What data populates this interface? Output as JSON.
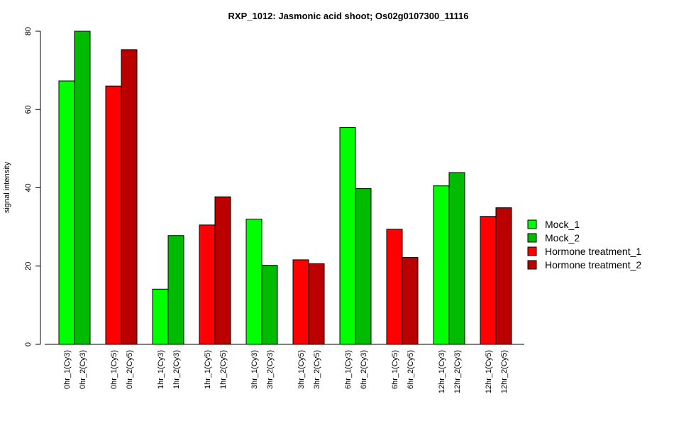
{
  "chart_data": {
    "type": "bar",
    "title": "RXP_1012: Jasmonic acid shoot; Os02g0107300_11116",
    "ylabel": "signal intensity",
    "xlabel": "",
    "ylim": [
      0,
      80
    ],
    "yticks": [
      0,
      20,
      40,
      60,
      80
    ],
    "legend_position": "right",
    "legend": [
      {
        "name": "Mock_1",
        "color": "#00ff00"
      },
      {
        "name": "Mock_2",
        "color": "#00bb00"
      },
      {
        "name": "Hormone treatment_1",
        "color": "#ff0000"
      },
      {
        "name": "Hormone treatment_2",
        "color": "#bb0000"
      }
    ],
    "groups": [
      {
        "bars": [
          {
            "label": "0hr_1(Cy3)",
            "value": 67.3,
            "color": "#00ff00"
          },
          {
            "label": "0hr_2(Cy3)",
            "value": 80.0,
            "color": "#00bb00"
          }
        ]
      },
      {
        "bars": [
          {
            "label": "0hr_1(Cy5)",
            "value": 66.0,
            "color": "#ff0000"
          },
          {
            "label": "0hr_2(Cy5)",
            "value": 75.3,
            "color": "#bb0000"
          }
        ]
      },
      {
        "bars": [
          {
            "label": "1hr_1(Cy3)",
            "value": 14.1,
            "color": "#00ff00"
          },
          {
            "label": "1hr_2(Cy3)",
            "value": 27.8,
            "color": "#00bb00"
          }
        ]
      },
      {
        "bars": [
          {
            "label": "1hr_1(Cy5)",
            "value": 30.5,
            "color": "#ff0000"
          },
          {
            "label": "1hr_2(Cy5)",
            "value": 37.7,
            "color": "#bb0000"
          }
        ]
      },
      {
        "bars": [
          {
            "label": "3hr_1(Cy3)",
            "value": 32.0,
            "color": "#00ff00"
          },
          {
            "label": "3hr_2(Cy3)",
            "value": 20.2,
            "color": "#00bb00"
          }
        ]
      },
      {
        "bars": [
          {
            "label": "3hr_1(Cy5)",
            "value": 21.6,
            "color": "#ff0000"
          },
          {
            "label": "3hr_2(Cy5)",
            "value": 20.6,
            "color": "#bb0000"
          }
        ]
      },
      {
        "bars": [
          {
            "label": "6hr_1(Cy3)",
            "value": 55.4,
            "color": "#00ff00"
          },
          {
            "label": "6hr_2(Cy3)",
            "value": 39.8,
            "color": "#00bb00"
          }
        ]
      },
      {
        "bars": [
          {
            "label": "6hr_1(Cy5)",
            "value": 29.4,
            "color": "#ff0000"
          },
          {
            "label": "6hr_2(Cy5)",
            "value": 22.2,
            "color": "#bb0000"
          }
        ]
      },
      {
        "bars": [
          {
            "label": "12hr_1(Cy3)",
            "value": 40.5,
            "color": "#00ff00"
          },
          {
            "label": "12hr_2(Cy3)",
            "value": 43.9,
            "color": "#00bb00"
          }
        ]
      },
      {
        "bars": [
          {
            "label": "12hr_1(Cy5)",
            "value": 32.7,
            "color": "#ff0000"
          },
          {
            "label": "12hr_2(Cy5)",
            "value": 34.9,
            "color": "#bb0000"
          }
        ]
      }
    ]
  }
}
